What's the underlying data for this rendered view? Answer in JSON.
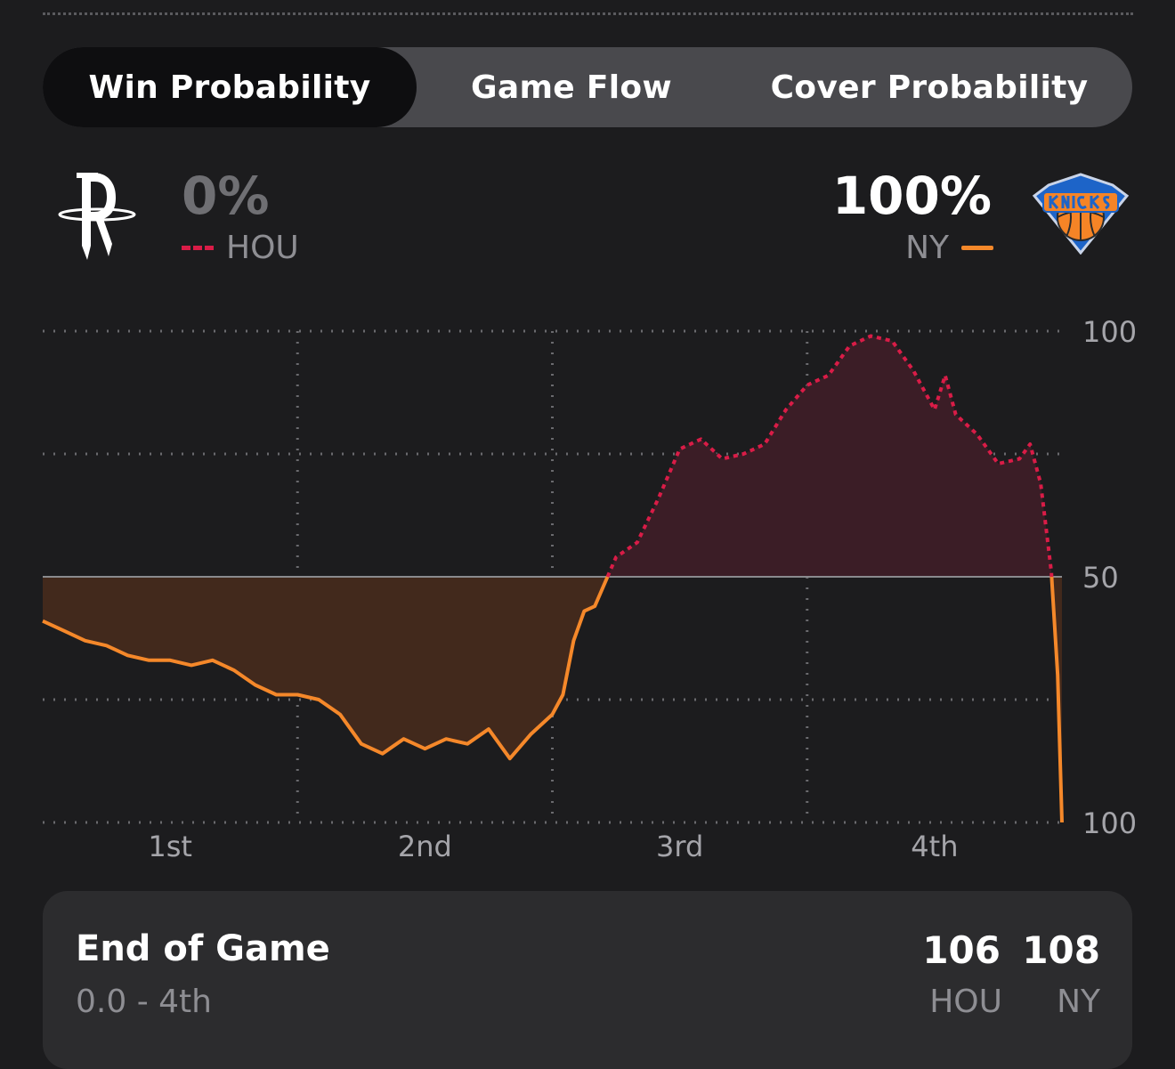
{
  "tabs": [
    {
      "label": "Win Probability",
      "active": true
    },
    {
      "label": "Game Flow",
      "active": false
    },
    {
      "label": "Cover Probability",
      "active": false
    }
  ],
  "teams": {
    "away": {
      "abbr": "HOU",
      "win_pct": "0%",
      "logo_icon": "rockets-logo-icon",
      "color": "#d91c47",
      "line_style": "dashed"
    },
    "home": {
      "abbr": "NY",
      "win_pct": "100%",
      "logo_icon": "knicks-logo-icon",
      "color": "#f5882a",
      "line_style": "solid"
    }
  },
  "chart_data": {
    "type": "line",
    "x_categories": [
      "1st",
      "2nd",
      "3rd",
      "4th"
    ],
    "y_tick_labels": [
      "100",
      "50",
      "100"
    ],
    "y_meaning": "win probability: top = HOU 100, middle = 50, bottom = NY 100",
    "grid": true,
    "series": [
      {
        "name": "HOU",
        "note": "HOU win probability over game progress (0-48 min)",
        "points": [
          [
            0,
            41
          ],
          [
            1,
            39
          ],
          [
            2,
            37
          ],
          [
            3,
            36
          ],
          [
            4,
            34
          ],
          [
            5,
            33
          ],
          [
            6,
            33
          ],
          [
            7,
            32
          ],
          [
            8,
            33
          ],
          [
            9,
            31
          ],
          [
            10,
            28
          ],
          [
            11,
            26
          ],
          [
            12,
            26
          ],
          [
            13,
            25
          ],
          [
            14,
            22
          ],
          [
            15,
            16
          ],
          [
            16,
            14
          ],
          [
            17,
            17
          ],
          [
            18,
            15
          ],
          [
            19,
            17
          ],
          [
            20,
            16
          ],
          [
            21,
            19
          ],
          [
            22,
            13
          ],
          [
            23,
            18
          ],
          [
            24,
            22
          ],
          [
            24.5,
            26
          ],
          [
            25,
            37
          ],
          [
            25.5,
            43
          ],
          [
            26,
            44
          ],
          [
            27,
            54
          ],
          [
            28,
            57
          ],
          [
            29,
            66
          ],
          [
            30,
            76
          ],
          [
            31,
            78
          ],
          [
            32,
            74
          ],
          [
            33,
            75
          ],
          [
            34,
            77
          ],
          [
            35,
            84
          ],
          [
            36,
            89
          ],
          [
            37,
            91
          ],
          [
            38,
            97
          ],
          [
            39,
            99
          ],
          [
            40,
            98
          ],
          [
            41,
            92
          ],
          [
            42,
            84
          ],
          [
            42.5,
            91
          ],
          [
            43,
            83
          ],
          [
            44,
            79
          ],
          [
            45,
            73
          ],
          [
            46,
            74
          ],
          [
            46.5,
            77
          ],
          [
            47,
            69
          ],
          [
            47.5,
            51
          ],
          [
            47.8,
            30
          ],
          [
            48,
            0
          ]
        ]
      }
    ]
  },
  "status": {
    "title": "End of Game",
    "subtitle": "0.0 - 4th",
    "hou_score": "106",
    "ny_score": "108",
    "hou_abbr": "HOU",
    "ny_abbr": "NY"
  }
}
